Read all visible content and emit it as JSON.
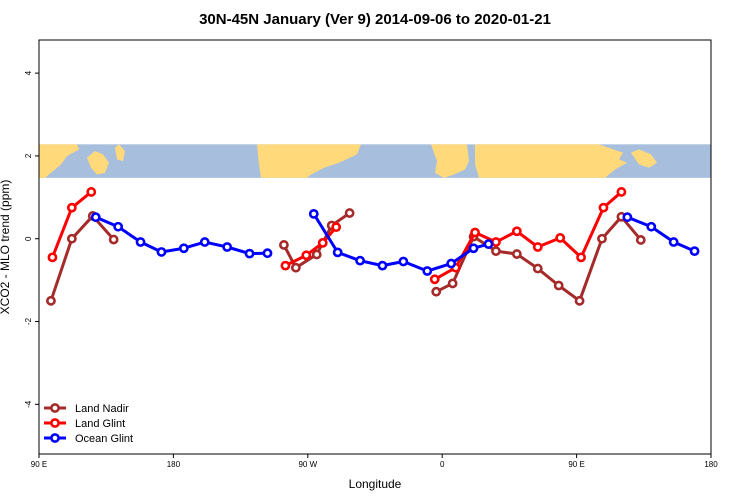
{
  "chart_data": {
    "type": "line",
    "title": "30N-45N January (Ver 9)   2014-09-06 to 2020-01-21",
    "xlabel": "Longitude",
    "ylabel": "XCO2 - MLO trend (ppm)",
    "xlim": [
      90,
      540
    ],
    "ylim": [
      -5.2,
      4.8
    ],
    "x_ticks": [
      {
        "value": 90,
        "label": "90 E"
      },
      {
        "value": 180,
        "label": "180"
      },
      {
        "value": 270,
        "label": "90 W"
      },
      {
        "value": 360,
        "label": "0"
      },
      {
        "value": 450,
        "label": "90 E"
      },
      {
        "value": 540,
        "label": "180"
      }
    ],
    "y_ticks": [
      {
        "value": -4,
        "label": "-4"
      },
      {
        "value": -2,
        "label": "-2"
      },
      {
        "value": 0,
        "label": "0"
      },
      {
        "value": 2,
        "label": "2"
      },
      {
        "value": 4,
        "label": "4"
      }
    ],
    "map_band": {
      "y_from": 1.47,
      "y_to": 2.28,
      "ocean_color": "#a8bedd",
      "land_color": "#ffd97a"
    },
    "legend_position": "bottom-left",
    "series": [
      {
        "name": "Land Nadir",
        "color": "#a52a2a",
        "segments": [
          [
            [
              98,
              -1.5
            ],
            [
              112,
              0.0
            ],
            [
              126,
              0.55
            ],
            [
              140,
              -0.02
            ]
          ],
          [
            [
              254,
              -0.15
            ],
            [
              262,
              -0.7
            ],
            [
              276,
              -0.38
            ],
            [
              286,
              0.32
            ],
            [
              298,
              0.62
            ]
          ],
          [
            [
              356,
              -1.28
            ],
            [
              367,
              -1.08
            ],
            [
              381,
              0.05
            ],
            [
              396,
              -0.3
            ],
            [
              410,
              -0.37
            ],
            [
              424,
              -0.72
            ],
            [
              438,
              -1.13
            ],
            [
              452,
              -1.5
            ],
            [
              467,
              0.0
            ],
            [
              480,
              0.53
            ],
            [
              493,
              -0.03
            ]
          ]
        ]
      },
      {
        "name": "Land Glint",
        "color": "#ff0000",
        "segments": [
          [
            [
              99,
              -0.45
            ],
            [
              112,
              0.75
            ],
            [
              125,
              1.13
            ]
          ],
          [
            [
              255,
              -0.65
            ],
            [
              269,
              -0.4
            ],
            [
              280,
              -0.1
            ],
            [
              289,
              0.28
            ]
          ],
          [
            [
              355,
              -0.98
            ],
            [
              369,
              -0.7
            ],
            [
              382,
              0.15
            ],
            [
              396,
              -0.08
            ],
            [
              410,
              0.18
            ],
            [
              424,
              -0.2
            ],
            [
              439,
              0.02
            ],
            [
              453,
              -0.45
            ],
            [
              468,
              0.75
            ],
            [
              480,
              1.13
            ]
          ]
        ]
      },
      {
        "name": "Ocean Glint",
        "color": "#0000ff",
        "segments": [
          [
            [
              128,
              0.52
            ],
            [
              143,
              0.29
            ],
            [
              158,
              -0.08
            ],
            [
              172,
              -0.32
            ],
            [
              187,
              -0.23
            ],
            [
              201,
              -0.08
            ],
            [
              216,
              -0.2
            ],
            [
              231,
              -0.36
            ],
            [
              243,
              -0.35
            ]
          ],
          [
            [
              274,
              0.6
            ],
            [
              290,
              -0.33
            ],
            [
              305,
              -0.53
            ],
            [
              320,
              -0.65
            ],
            [
              334,
              -0.55
            ],
            [
              350,
              -0.78
            ],
            [
              366,
              -0.6
            ],
            [
              381,
              -0.23
            ],
            [
              391,
              -0.13
            ]
          ],
          [
            [
              484,
              0.52
            ],
            [
              500,
              0.29
            ],
            [
              515,
              -0.08
            ],
            [
              529,
              -0.3
            ]
          ]
        ]
      }
    ]
  }
}
